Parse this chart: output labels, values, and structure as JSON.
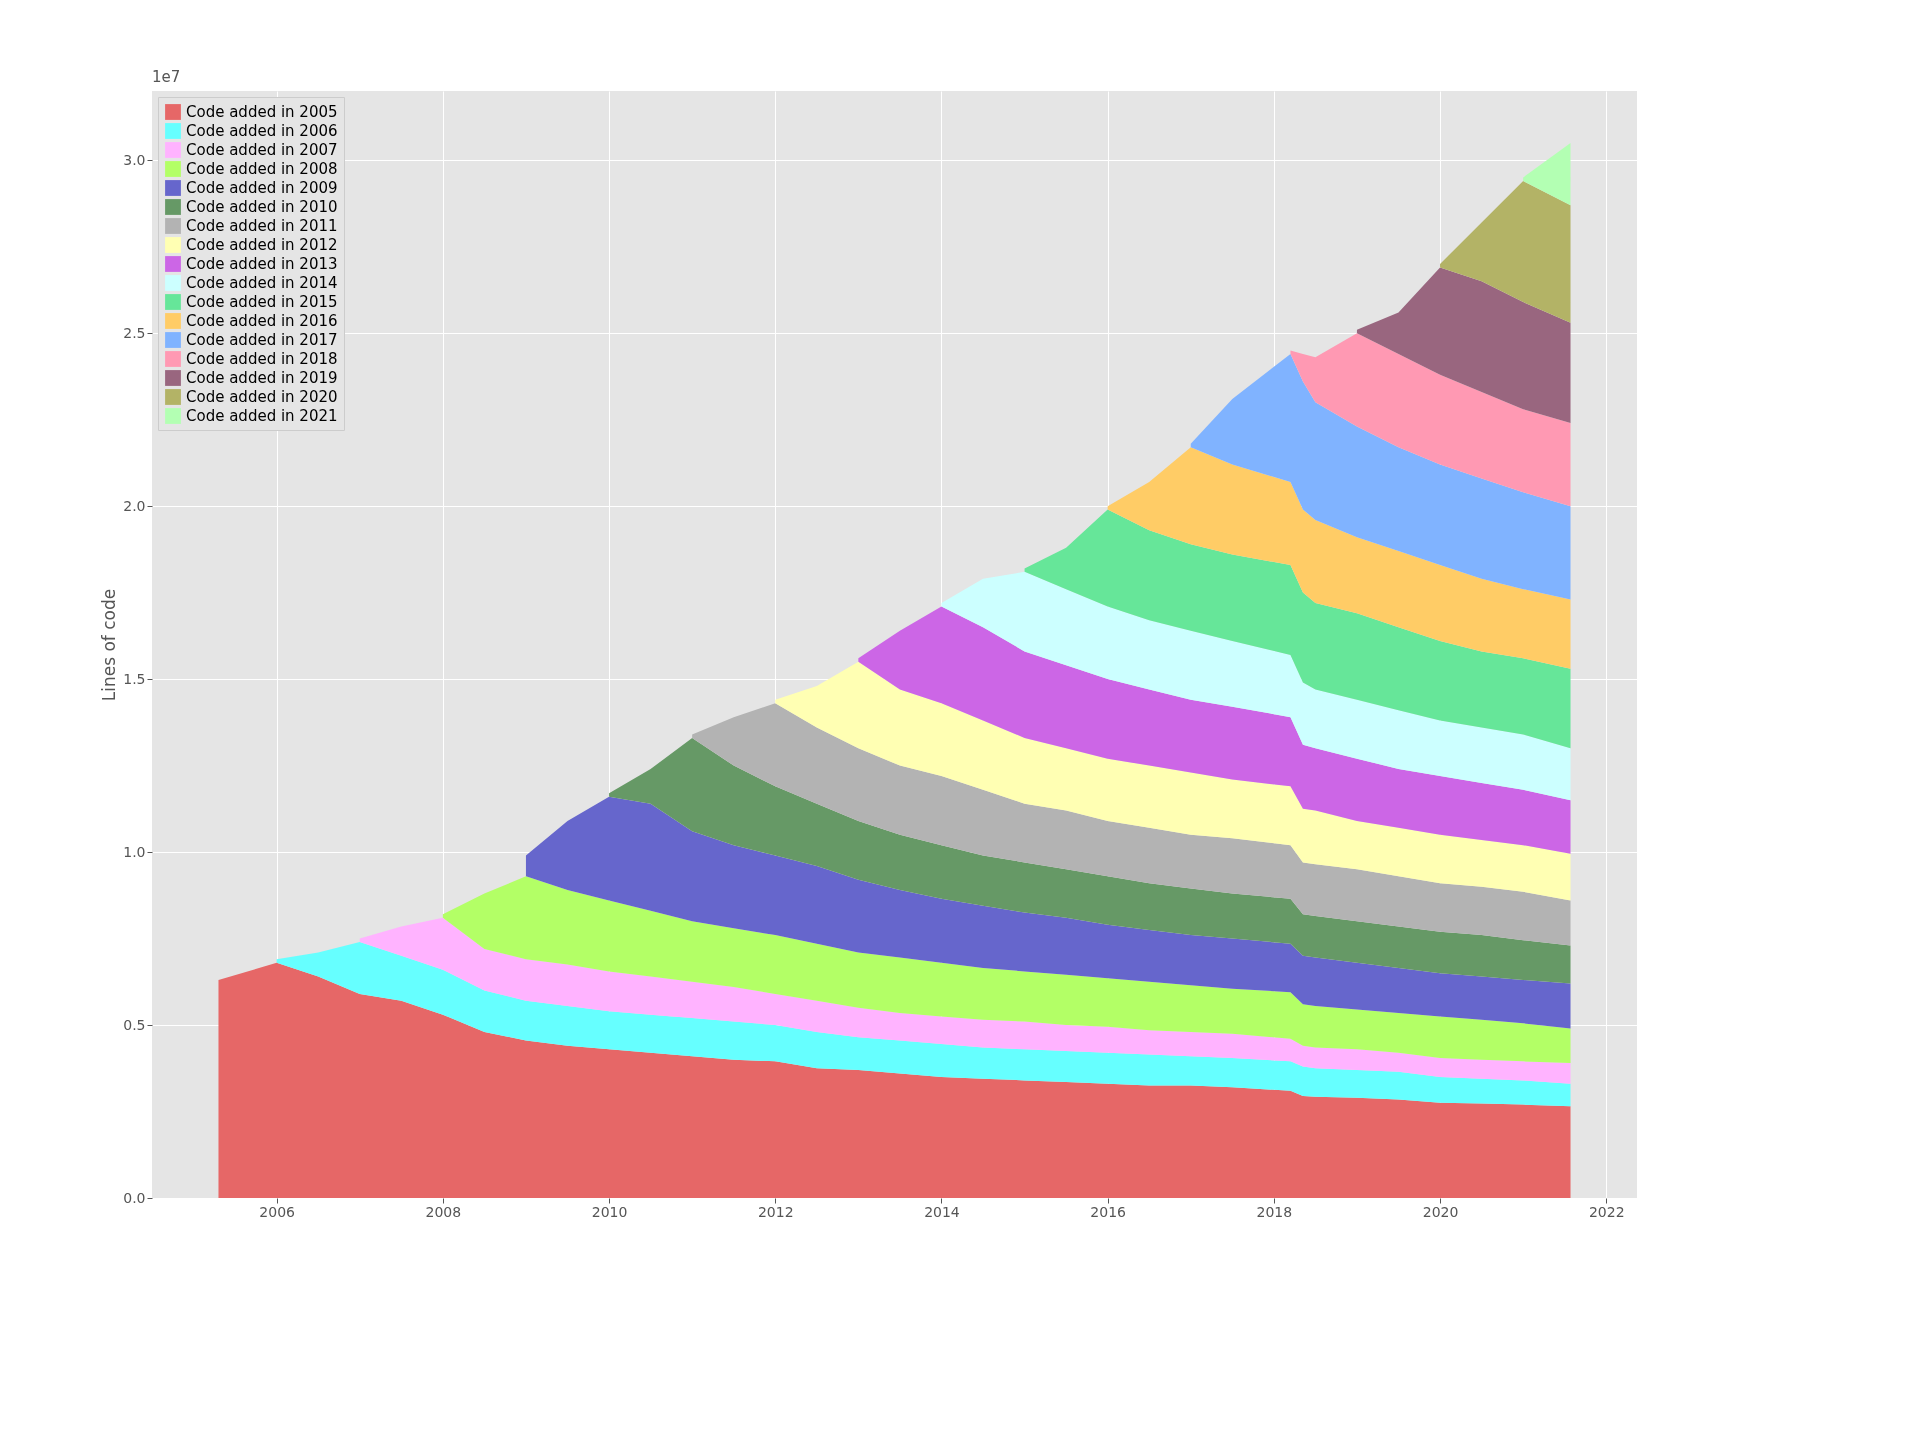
{
  "chart_data": {
    "type": "area",
    "stacked": true,
    "ylabel": "Lines of code",
    "legend": "top left",
    "grid": true,
    "annotations": [
      "1e7"
    ],
    "x": [
      2005.3,
      2006.0,
      2006.5,
      2007.0,
      2007.5,
      2008.0,
      2008.5,
      2009.0,
      2009.5,
      2010.0,
      2010.5,
      2011.0,
      2011.5,
      2012.0,
      2012.5,
      2013.0,
      2013.5,
      2014.0,
      2014.5,
      2015.0,
      2015.5,
      2016.0,
      2016.5,
      2017.0,
      2017.5,
      2018.2,
      2018.35,
      2018.5,
      2019.0,
      2019.5,
      2020.0,
      2020.5,
      2021.0,
      2021.57
    ],
    "xlim": [
      2004.5,
      2022.37
    ],
    "xticks": [
      2006,
      2008,
      2010,
      2012,
      2014,
      2016,
      2018,
      2020,
      2022
    ],
    "ylim": [
      0,
      3.2
    ],
    "yticks": [
      {
        "value": 0,
        "label": "0.0"
      },
      0.5,
      {
        "value": 1,
        "label": "1.0"
      },
      1.5,
      {
        "value": 2,
        "label": "2.0"
      },
      2.5,
      {
        "value": 3,
        "label": "3.0"
      }
    ],
    "series": [
      {
        "name": "Code added in 2005",
        "color": "#e66767",
        "values": [
          0.63,
          0.68,
          0.64,
          0.59,
          0.57,
          0.53,
          0.48,
          0.455,
          0.44,
          0.43,
          0.42,
          0.41,
          0.4,
          0.395,
          0.375,
          0.37,
          0.36,
          0.35,
          0.345,
          0.34,
          0.335,
          0.33,
          0.325,
          0.325,
          0.32,
          0.31,
          0.295,
          0.293,
          0.29,
          0.285,
          0.275,
          0.273,
          0.27,
          0.265
        ]
      },
      {
        "name": "Code added in 2006",
        "color": "#66ffff",
        "values": [
          null,
          0.01,
          0.07,
          0.15,
          0.13,
          0.13,
          0.12,
          0.115,
          0.115,
          0.11,
          0.11,
          0.11,
          0.11,
          0.105,
          0.105,
          0.095,
          0.095,
          0.095,
          0.09,
          0.09,
          0.09,
          0.09,
          0.09,
          0.085,
          0.085,
          0.085,
          0.085,
          0.082,
          0.08,
          0.08,
          0.075,
          0.072,
          0.07,
          0.065
        ]
      },
      {
        "name": "Code added in 2007",
        "color": "#ffb3ff",
        "values": [
          null,
          null,
          null,
          0.01,
          0.085,
          0.15,
          0.12,
          0.12,
          0.12,
          0.115,
          0.11,
          0.105,
          0.1,
          0.09,
          0.09,
          0.085,
          0.08,
          0.08,
          0.08,
          0.08,
          0.075,
          0.075,
          0.07,
          0.07,
          0.07,
          0.065,
          0.06,
          0.06,
          0.06,
          0.055,
          0.055,
          0.055,
          0.055,
          0.06
        ]
      },
      {
        "name": "Code added in 2008",
        "color": "#b3ff66",
        "values": [
          null,
          null,
          null,
          null,
          null,
          0.01,
          0.16,
          0.24,
          0.215,
          0.205,
          0.19,
          0.175,
          0.17,
          0.17,
          0.165,
          0.16,
          0.16,
          0.155,
          0.15,
          0.145,
          0.145,
          0.14,
          0.14,
          0.135,
          0.13,
          0.135,
          0.12,
          0.12,
          0.115,
          0.115,
          0.12,
          0.115,
          0.11,
          0.1
        ]
      },
      {
        "name": "Code added in 2009",
        "color": "#6666cc",
        "values": [
          null,
          null,
          null,
          null,
          null,
          null,
          null,
          0.06,
          0.2,
          0.3,
          0.31,
          0.26,
          0.24,
          0.23,
          0.225,
          0.21,
          0.195,
          0.185,
          0.18,
          0.17,
          0.165,
          0.155,
          0.15,
          0.145,
          0.145,
          0.14,
          0.14,
          0.14,
          0.135,
          0.13,
          0.125,
          0.125,
          0.125,
          0.13
        ]
      },
      {
        "name": "Code added in 2010",
        "color": "#669966",
        "values": [
          null,
          null,
          null,
          null,
          null,
          null,
          null,
          null,
          null,
          0.01,
          0.1,
          0.27,
          0.23,
          0.2,
          0.18,
          0.17,
          0.16,
          0.155,
          0.145,
          0.145,
          0.14,
          0.14,
          0.135,
          0.135,
          0.13,
          0.13,
          0.12,
          0.12,
          0.12,
          0.12,
          0.12,
          0.12,
          0.115,
          0.11
        ]
      },
      {
        "name": "Code added in 2011",
        "color": "#b3b3b3",
        "values": [
          null,
          null,
          null,
          null,
          null,
          null,
          null,
          null,
          null,
          null,
          null,
          0.01,
          0.14,
          0.24,
          0.22,
          0.21,
          0.2,
          0.2,
          0.19,
          0.17,
          0.17,
          0.16,
          0.16,
          0.155,
          0.16,
          0.155,
          0.15,
          0.15,
          0.15,
          0.145,
          0.14,
          0.14,
          0.14,
          0.13
        ]
      },
      {
        "name": "Code added in 2012",
        "color": "#ffffb3",
        "values": [
          null,
          null,
          null,
          null,
          null,
          null,
          null,
          null,
          null,
          null,
          null,
          null,
          null,
          0.01,
          0.12,
          0.25,
          0.22,
          0.21,
          0.2,
          0.19,
          0.18,
          0.18,
          0.18,
          0.18,
          0.17,
          0.17,
          0.155,
          0.155,
          0.14,
          0.14,
          0.14,
          0.135,
          0.135,
          0.135
        ]
      },
      {
        "name": "Code added in 2013",
        "color": "#cc66e6",
        "values": [
          null,
          null,
          null,
          null,
          null,
          null,
          null,
          null,
          null,
          null,
          null,
          null,
          null,
          null,
          null,
          0.01,
          0.17,
          0.28,
          0.27,
          0.25,
          0.24,
          0.23,
          0.22,
          0.21,
          0.21,
          0.2,
          0.185,
          0.18,
          0.18,
          0.17,
          0.17,
          0.165,
          0.16,
          0.155
        ]
      },
      {
        "name": "Code added in 2014",
        "color": "#ccffff",
        "values": [
          null,
          null,
          null,
          null,
          null,
          null,
          null,
          null,
          null,
          null,
          null,
          null,
          null,
          null,
          null,
          null,
          null,
          0.01,
          0.14,
          0.23,
          0.22,
          0.21,
          0.2,
          0.2,
          0.19,
          0.18,
          0.18,
          0.17,
          0.17,
          0.17,
          0.16,
          0.16,
          0.16,
          0.15
        ]
      },
      {
        "name": "Code added in 2015",
        "color": "#66e699",
        "values": [
          null,
          null,
          null,
          null,
          null,
          null,
          null,
          null,
          null,
          null,
          null,
          null,
          null,
          null,
          null,
          null,
          null,
          null,
          null,
          0.01,
          0.12,
          0.28,
          0.26,
          0.25,
          0.25,
          0.26,
          0.26,
          0.25,
          0.25,
          0.24,
          0.23,
          0.22,
          0.22,
          0.23
        ]
      },
      {
        "name": "Code added in 2016",
        "color": "#ffcc66",
        "values": [
          null,
          null,
          null,
          null,
          null,
          null,
          null,
          null,
          null,
          null,
          null,
          null,
          null,
          null,
          null,
          null,
          null,
          null,
          null,
          null,
          null,
          0.01,
          0.14,
          0.28,
          0.26,
          0.24,
          0.24,
          0.24,
          0.22,
          0.22,
          0.22,
          0.21,
          0.2,
          0.2
        ]
      },
      {
        "name": "Code added in 2017",
        "color": "#80b3ff",
        "values": [
          null,
          null,
          null,
          null,
          null,
          null,
          null,
          null,
          null,
          null,
          null,
          null,
          null,
          null,
          null,
          null,
          null,
          null,
          null,
          null,
          null,
          null,
          null,
          0.01,
          0.19,
          0.37,
          0.37,
          0.34,
          0.32,
          0.3,
          0.29,
          0.29,
          0.28,
          0.27
        ]
      },
      {
        "name": "Code added in 2018",
        "color": "#ff99b3",
        "values": [
          null,
          null,
          null,
          null,
          null,
          null,
          null,
          null,
          null,
          null,
          null,
          null,
          null,
          null,
          null,
          null,
          null,
          null,
          null,
          null,
          null,
          null,
          null,
          null,
          null,
          0.01,
          0.08,
          0.13,
          0.27,
          0.27,
          0.26,
          0.25,
          0.24,
          0.24
        ]
      },
      {
        "name": "Code added in 2019",
        "color": "#99667f",
        "values": [
          null,
          null,
          null,
          null,
          null,
          null,
          null,
          null,
          null,
          null,
          null,
          null,
          null,
          null,
          null,
          null,
          null,
          null,
          null,
          null,
          null,
          null,
          null,
          null,
          null,
          null,
          null,
          null,
          0.01,
          0.12,
          0.31,
          0.32,
          0.31,
          0.29
        ]
      },
      {
        "name": "Code added in 2020",
        "color": "#b3b366",
        "values": [
          null,
          null,
          null,
          null,
          null,
          null,
          null,
          null,
          null,
          null,
          null,
          null,
          null,
          null,
          null,
          null,
          null,
          null,
          null,
          null,
          null,
          null,
          null,
          null,
          null,
          null,
          null,
          null,
          null,
          null,
          0.01,
          0.17,
          0.35,
          0.34
        ]
      },
      {
        "name": "Code added in 2021",
        "color": "#b3ffb3",
        "values": [
          null,
          null,
          null,
          null,
          null,
          null,
          null,
          null,
          null,
          null,
          null,
          null,
          null,
          null,
          null,
          null,
          null,
          null,
          null,
          null,
          null,
          null,
          null,
          null,
          null,
          null,
          null,
          null,
          null,
          null,
          null,
          null,
          0.01,
          0.18
        ]
      }
    ]
  }
}
